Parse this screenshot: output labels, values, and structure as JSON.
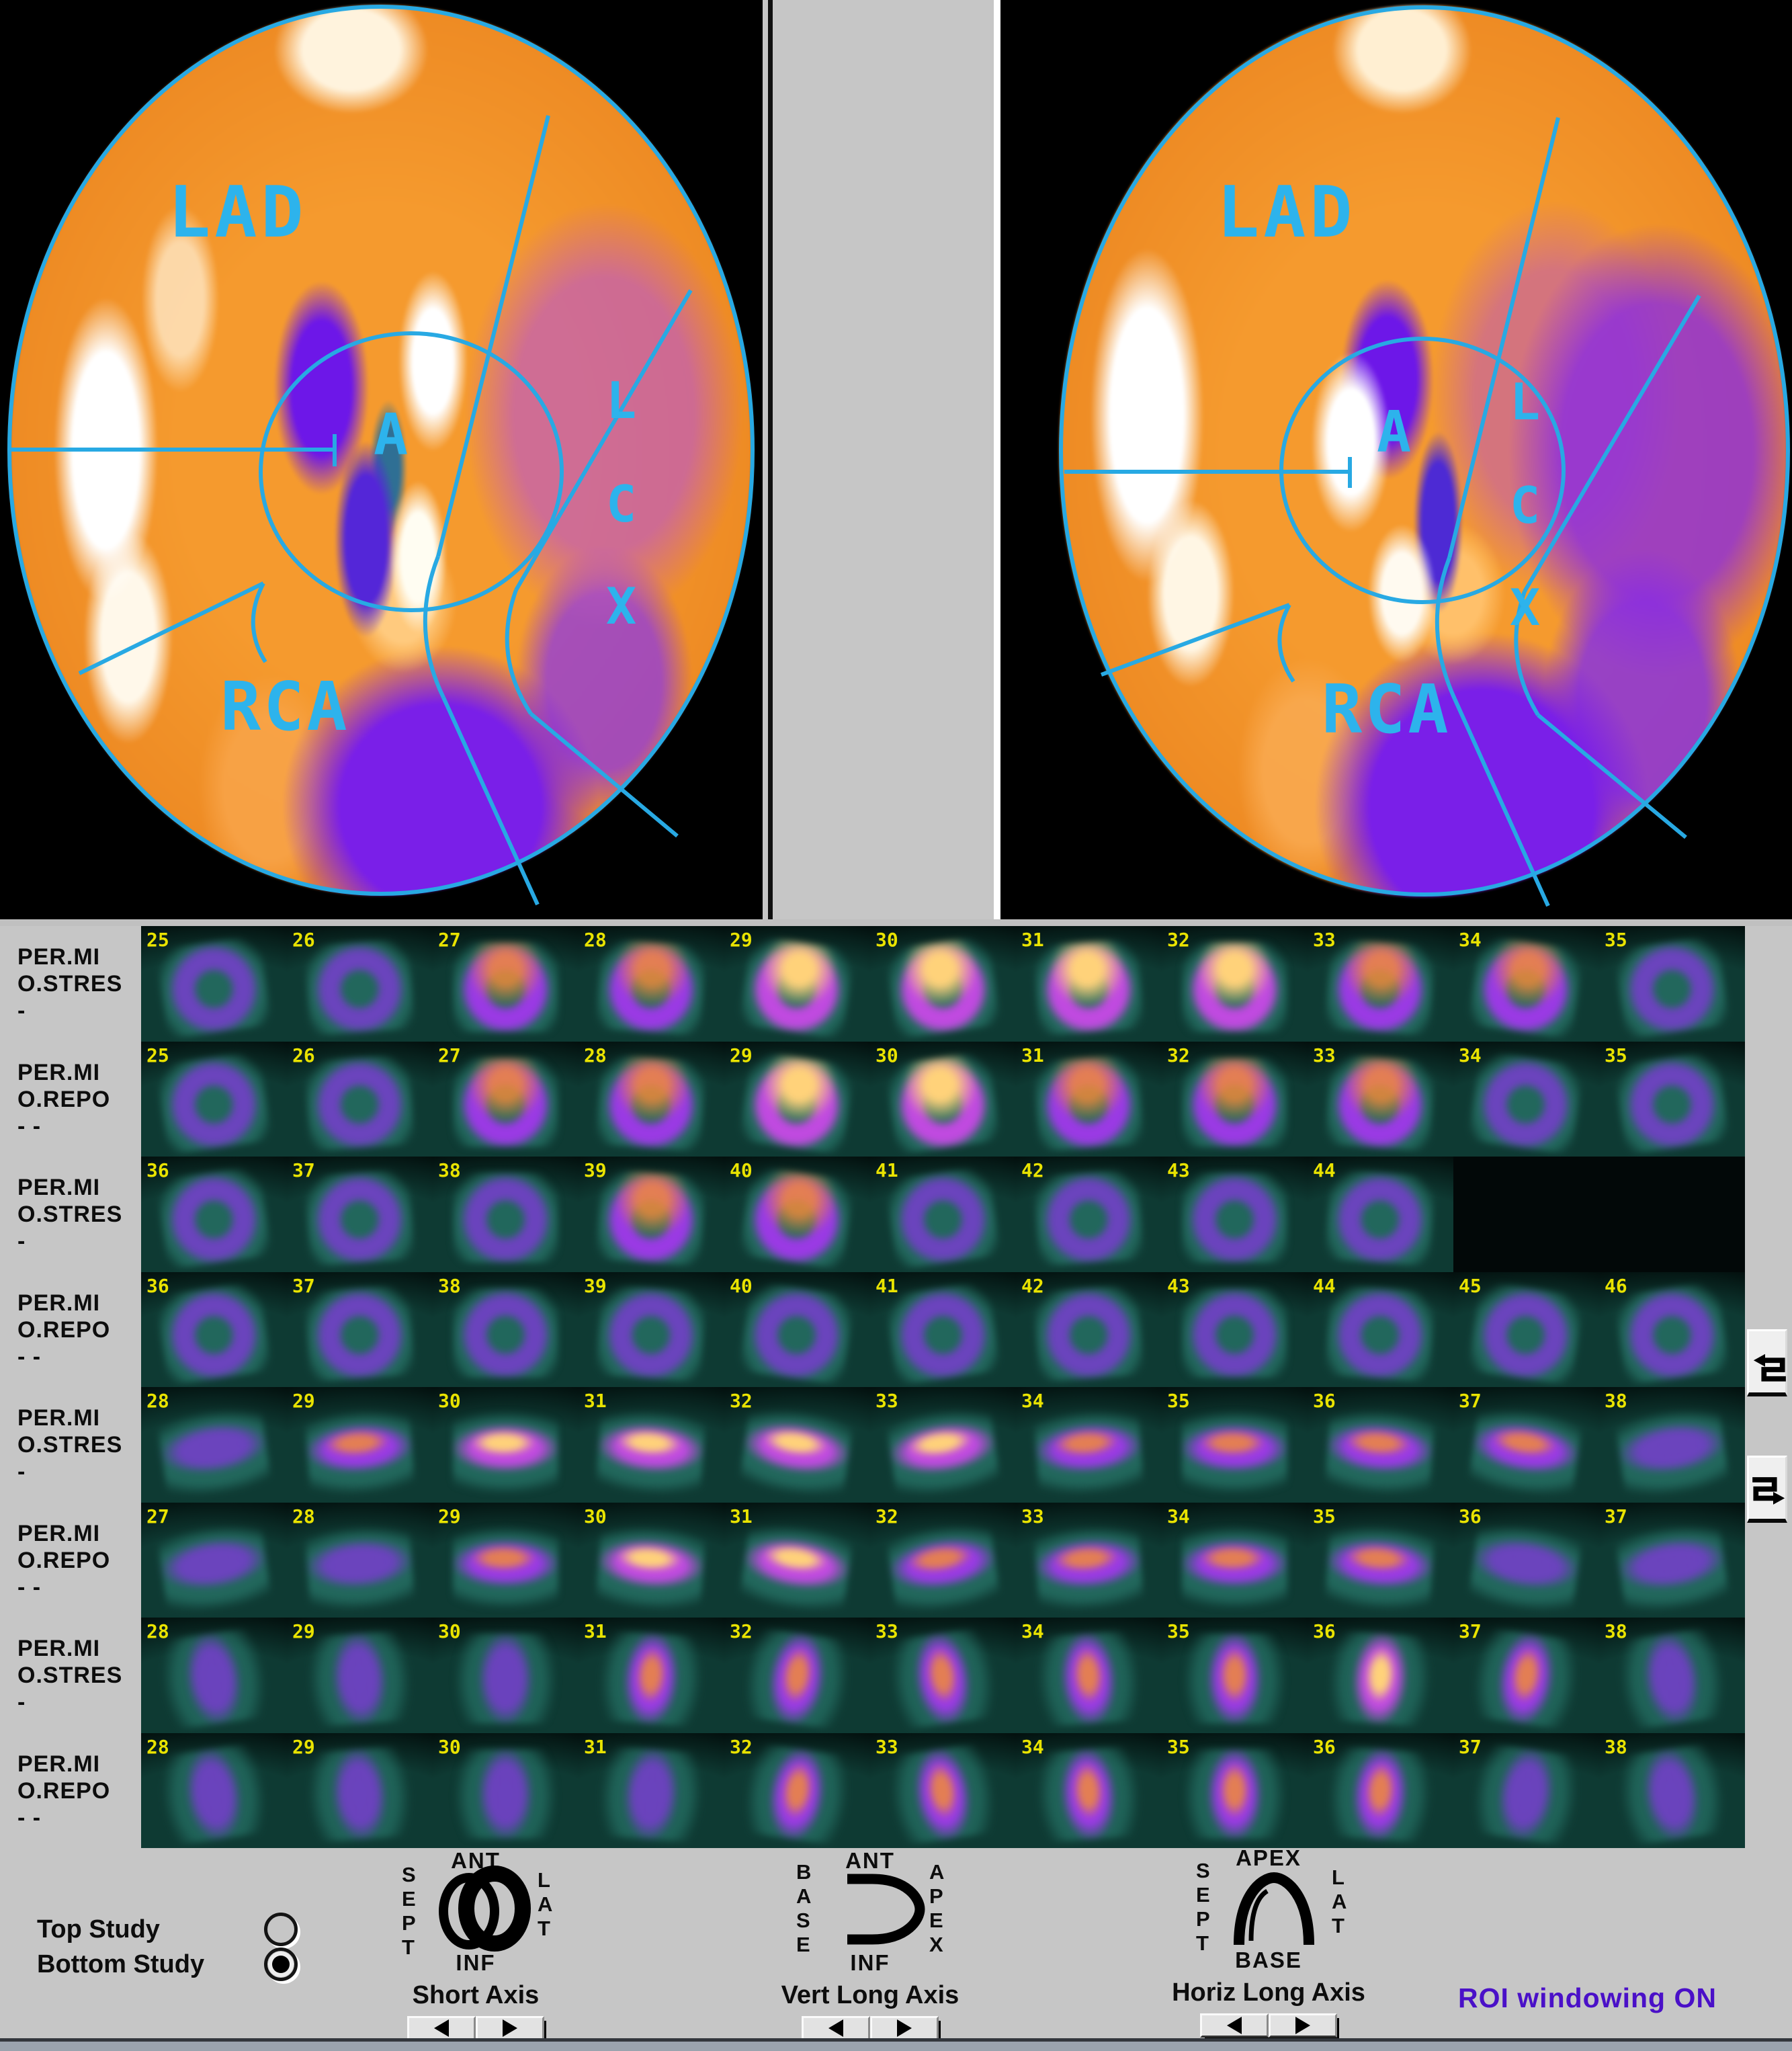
{
  "polar": {
    "left": {
      "labels": {
        "lad": "LAD",
        "apex": "A",
        "lcx": [
          "L",
          "C",
          "X"
        ],
        "rca": "RCA"
      }
    },
    "right": {
      "labels": {
        "lad": "LAD",
        "apex": "A",
        "lcx": [
          "L",
          "C",
          "X"
        ],
        "rca": "RCA"
      }
    }
  },
  "slices": {
    "rows": [
      {
        "label_lines": [
          "PER.MI",
          "O.STRES",
          "-"
        ],
        "type": "sa",
        "study": "stress",
        "numbers": [
          25,
          26,
          27,
          28,
          29,
          30,
          31,
          32,
          33,
          34,
          35
        ],
        "profile": [
          1,
          1,
          2,
          2,
          3,
          3,
          3,
          3,
          2,
          2,
          1
        ]
      },
      {
        "label_lines": [
          "PER.MI",
          "O.REPO",
          "- -"
        ],
        "type": "sa",
        "study": "rest",
        "numbers": [
          25,
          26,
          27,
          28,
          29,
          30,
          31,
          32,
          33,
          34,
          35
        ],
        "profile": [
          1,
          1,
          2,
          2,
          3,
          3,
          2,
          2,
          2,
          1,
          1
        ]
      },
      {
        "label_lines": [
          "PER.MI",
          "O.STRES",
          "-"
        ],
        "type": "sa",
        "study": "stress",
        "numbers": [
          36,
          37,
          38,
          39,
          40,
          41,
          42,
          43,
          44
        ],
        "profile": [
          1,
          1,
          1,
          2,
          2,
          1,
          1,
          1,
          1
        ]
      },
      {
        "label_lines": [
          "PER.MI",
          "O.REPO",
          "- -"
        ],
        "type": "sa",
        "study": "rest",
        "numbers": [
          36,
          37,
          38,
          39,
          40,
          41,
          42,
          43,
          44,
          45,
          46
        ],
        "profile": [
          1,
          1,
          1,
          1,
          1,
          1,
          1,
          1,
          1,
          1,
          1
        ]
      },
      {
        "label_lines": [
          "PER.MI",
          "O.STRES",
          "-"
        ],
        "type": "vla",
        "study": "stress",
        "numbers": [
          28,
          29,
          30,
          31,
          32,
          33,
          34,
          35,
          36,
          37,
          38
        ],
        "profile": [
          1,
          2,
          3,
          3,
          3,
          3,
          2,
          2,
          2,
          2,
          1
        ]
      },
      {
        "label_lines": [
          "PER.MI",
          "O.REPO",
          "- -"
        ],
        "type": "vla",
        "study": "rest",
        "numbers": [
          27,
          28,
          29,
          30,
          31,
          32,
          33,
          34,
          35,
          36,
          37
        ],
        "profile": [
          1,
          1,
          2,
          3,
          3,
          2,
          2,
          2,
          2,
          1,
          1
        ]
      },
      {
        "label_lines": [
          "PER.MI",
          "O.STRES",
          "-"
        ],
        "type": "hla",
        "study": "stress",
        "numbers": [
          28,
          29,
          30,
          31,
          32,
          33,
          34,
          35,
          36,
          37,
          38
        ],
        "profile": [
          1,
          1,
          1,
          2,
          2,
          2,
          2,
          2,
          3,
          2,
          1
        ]
      },
      {
        "label_lines": [
          "PER.MI",
          "O.REPO",
          "- -"
        ],
        "type": "hla",
        "study": "rest",
        "numbers": [
          28,
          29,
          30,
          31,
          32,
          33,
          34,
          35,
          36,
          37,
          38
        ],
        "profile": [
          1,
          1,
          1,
          1,
          2,
          2,
          2,
          2,
          2,
          1,
          1
        ]
      }
    ]
  },
  "controls": {
    "studies": [
      {
        "label": "Top Study",
        "selected": false
      },
      {
        "label": "Bottom Study",
        "selected": true
      }
    ],
    "axis_groups": [
      {
        "label": "Short Axis",
        "top": "ANT",
        "bottom": "INF",
        "left": "SEPT",
        "right": "LAT"
      },
      {
        "label": "Vert Long Axis",
        "top": "ANT",
        "bottom": "INF",
        "left": "BASE",
        "right": "APEX"
      },
      {
        "label": "Horiz Long Axis",
        "top": "APEX",
        "bottom": "BASE",
        "left": "SEPT",
        "right": "LAT"
      }
    ],
    "roi_status": "ROI windowing ON"
  },
  "colors": {
    "outline_cyan": "#28a9e3",
    "number_yellow": "#e9e300",
    "ui_gray": "#c6c6c6",
    "roi_purple": "#4a10c8"
  }
}
